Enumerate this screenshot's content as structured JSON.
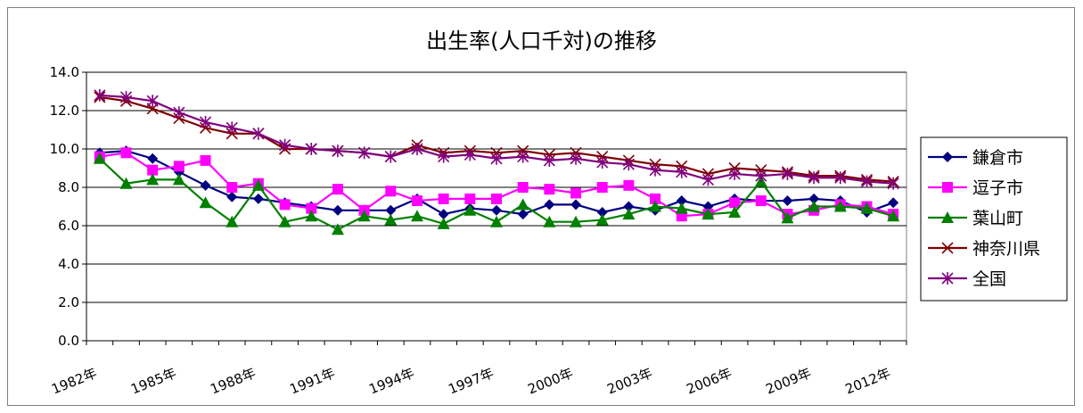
{
  "chart_data": {
    "type": "line",
    "title": "出生率(人口千対)の推移",
    "xlabel": "",
    "ylabel": "",
    "ylim": [
      0,
      14
    ],
    "yticks": [
      "0.0",
      "2.0",
      "4.0",
      "6.0",
      "8.0",
      "10.0",
      "12.0",
      "14.0"
    ],
    "x": [
      1982,
      1983,
      1984,
      1985,
      1986,
      1987,
      1988,
      1989,
      1990,
      1991,
      1992,
      1993,
      1994,
      1995,
      1996,
      1997,
      1998,
      1999,
      2000,
      2001,
      2002,
      2003,
      2004,
      2005,
      2006,
      2007,
      2008,
      2009,
      2010,
      2011,
      2012
    ],
    "xtick_labels": [
      "1982年",
      "1985年",
      "1988年",
      "1991年",
      "1994年",
      "1997年",
      "2000年",
      "2003年",
      "2006年",
      "2009年",
      "2012年"
    ],
    "grid": true,
    "legend_position": "right",
    "series": [
      {
        "name": "鎌倉市",
        "color": "#000080",
        "marker": "diamond",
        "values": [
          9.8,
          9.9,
          9.5,
          8.8,
          8.1,
          7.5,
          7.4,
          7.2,
          7.0,
          6.8,
          6.8,
          6.8,
          7.4,
          6.6,
          6.9,
          6.8,
          6.6,
          7.1,
          7.1,
          6.7,
          7.0,
          6.8,
          7.3,
          7.0,
          7.4,
          7.3,
          7.3,
          7.4,
          7.3,
          6.7,
          7.2
        ]
      },
      {
        "name": "逗子市",
        "color": "#ff00ff",
        "marker": "square",
        "values": [
          9.6,
          9.8,
          8.9,
          9.1,
          9.4,
          8.0,
          8.2,
          7.1,
          6.9,
          7.9,
          6.8,
          7.8,
          7.3,
          7.4,
          7.4,
          7.4,
          8.0,
          7.9,
          7.7,
          8.0,
          8.1,
          7.4,
          6.5,
          6.6,
          7.2,
          7.3,
          6.6,
          6.8,
          7.1,
          7.0,
          6.6
        ]
      },
      {
        "name": "葉山町",
        "color": "#008000",
        "marker": "triangle",
        "values": [
          9.5,
          8.2,
          8.4,
          8.4,
          7.2,
          6.2,
          8.1,
          6.2,
          6.5,
          5.8,
          6.5,
          6.3,
          6.5,
          6.1,
          6.8,
          6.2,
          7.1,
          6.2,
          6.2,
          6.3,
          6.6,
          7.0,
          6.9,
          6.6,
          6.7,
          8.3,
          6.4,
          7.0,
          7.0,
          6.9,
          6.5
        ]
      },
      {
        "name": "神奈川県",
        "color": "#800000",
        "marker": "x",
        "values": [
          12.7,
          12.5,
          12.1,
          11.6,
          11.1,
          10.8,
          10.8,
          10.0,
          10.0,
          9.9,
          9.8,
          9.6,
          10.2,
          9.8,
          9.9,
          9.8,
          9.9,
          9.7,
          9.8,
          9.6,
          9.4,
          9.2,
          9.1,
          8.7,
          9.0,
          8.9,
          8.8,
          8.6,
          8.6,
          8.4,
          8.3
        ]
      },
      {
        "name": "全国",
        "color": "#800080",
        "marker": "asterisk",
        "values": [
          12.8,
          12.7,
          12.5,
          11.9,
          11.4,
          11.1,
          10.8,
          10.2,
          10.0,
          9.9,
          9.8,
          9.6,
          10.0,
          9.6,
          9.7,
          9.5,
          9.6,
          9.4,
          9.5,
          9.3,
          9.2,
          8.9,
          8.8,
          8.4,
          8.7,
          8.6,
          8.7,
          8.5,
          8.5,
          8.3,
          8.2
        ]
      }
    ]
  }
}
